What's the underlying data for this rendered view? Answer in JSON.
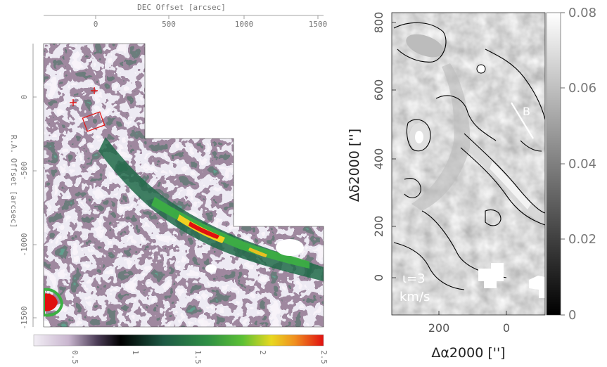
{
  "left_panel": {
    "top_axis_title": "DEC  Offset  [arcsec]",
    "top_ticks": [
      "0",
      "500",
      "1000",
      "1500"
    ],
    "left_axis_title": "R.A.  Offset  [arcsec]",
    "left_ticks": [
      "0",
      "-500",
      "-1000",
      "-1500"
    ],
    "colorbar_ticks": [
      "0.5",
      "1",
      "1.5",
      "2",
      "2.5"
    ],
    "colors": {
      "low": "#efe6f2",
      "mid_dark": "#000000",
      "teal": "#1e5a45",
      "green": "#3cb043",
      "yellow": "#f0d020",
      "red": "#e01010",
      "marker": "#e01818"
    }
  },
  "right_panel": {
    "x_axis_title": "Δα2000 ['']",
    "y_axis_title": "Δδ2000 ['']",
    "x_ticks": [
      "200",
      "0"
    ],
    "y_ticks": [
      "800",
      "600",
      "400",
      "200",
      "0"
    ],
    "annotation_line1": "ι=3",
    "annotation_line2": "km/s",
    "cut_label": "B",
    "colorbar_ticks": [
      "0.08",
      "0.06",
      "0.04",
      "0.02",
      "0"
    ]
  }
}
